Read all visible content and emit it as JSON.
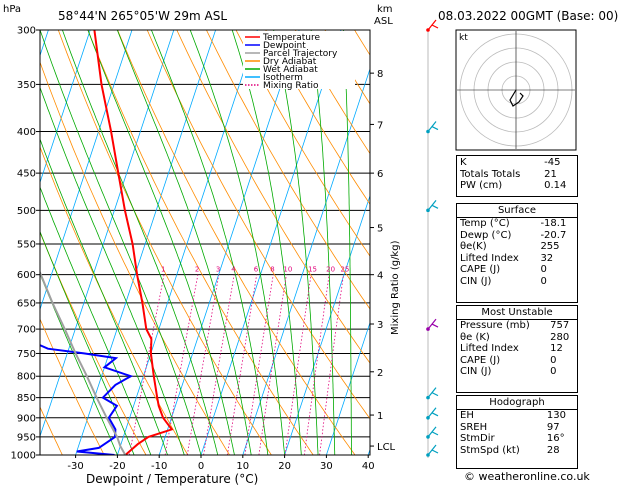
{
  "header": {
    "location": "58°44'N  265°05'W  29m  ASL",
    "datetime": "08.03.2022  00GMT  (Base: 00)",
    "hpa_unit": "hPa",
    "km_unit": "km",
    "asl_unit": "ASL"
  },
  "legend": [
    {
      "label": "Temperature",
      "color": "#ff0000"
    },
    {
      "label": "Dewpoint",
      "color": "#0000ff"
    },
    {
      "label": "Parcel Trajectory",
      "color": "#a0a0a0"
    },
    {
      "label": "Dry Adiabat",
      "color": "#ff8c00"
    },
    {
      "label": "Wet Adiabat",
      "color": "#00aa00"
    },
    {
      "label": "Isotherm",
      "color": "#00aaff"
    },
    {
      "label": "Mixing Ratio",
      "color": "#e0007a"
    }
  ],
  "colors": {
    "temperature": "#ff0000",
    "dewpoint": "#0000ff",
    "parcel": "#a0a0a0",
    "dry_adiabat": "#ff8c00",
    "wet_adiabat": "#00aa00",
    "isotherm": "#00aaff",
    "mixing_ratio": "#e0007a",
    "wind_barb": "#00a0c0"
  },
  "chart_data": {
    "type": "line",
    "title": "",
    "xlabel": "Dewpoint / Temperature (°C)",
    "ylabel": "",
    "secondary_ylabel": "Mixing Ratio (g/kg)",
    "x_ticks": [
      -30,
      -20,
      -10,
      0,
      10,
      20,
      30,
      40
    ],
    "xlim": [
      -40,
      40
    ],
    "y_log_scale": true,
    "pressure_levels": [
      300,
      350,
      400,
      450,
      500,
      550,
      600,
      650,
      700,
      750,
      800,
      850,
      900,
      950,
      1000
    ],
    "ylim": [
      1000,
      300
    ],
    "skew": true,
    "km_ticks": [
      {
        "p": 339,
        "label": "8"
      },
      {
        "p": 392,
        "label": "7"
      },
      {
        "p": 450,
        "label": "6"
      },
      {
        "p": 525,
        "label": "5"
      },
      {
        "p": 600,
        "label": "4"
      },
      {
        "p": 690,
        "label": "3"
      },
      {
        "p": 790,
        "label": "2"
      },
      {
        "p": 893,
        "label": "1"
      },
      {
        "p": 975,
        "label": "LCL"
      }
    ],
    "mixing_ratio_labels": [
      {
        "label": "1",
        "g": 1
      },
      {
        "label": "2",
        "g": 2
      },
      {
        "label": "3",
        "g": 3
      },
      {
        "label": "4",
        "g": 4
      },
      {
        "label": "6",
        "g": 6
      },
      {
        "label": "8",
        "g": 8
      },
      {
        "label": "10",
        "g": 10
      },
      {
        "label": "15",
        "g": 15
      },
      {
        "label": "20",
        "g": 20
      },
      {
        "label": "25",
        "g": 25
      }
    ],
    "series": [
      {
        "name": "Temperature",
        "points": [
          [
            1000,
            -18.1
          ],
          [
            970,
            -16
          ],
          [
            950,
            -14
          ],
          [
            930,
            -9
          ],
          [
            900,
            -12
          ],
          [
            870,
            -14
          ],
          [
            850,
            -15
          ],
          [
            800,
            -17.5
          ],
          [
            750,
            -20
          ],
          [
            720,
            -21
          ],
          [
            700,
            -23
          ],
          [
            650,
            -26
          ],
          [
            600,
            -29.5
          ],
          [
            550,
            -33
          ],
          [
            500,
            -37.5
          ],
          [
            450,
            -42
          ],
          [
            400,
            -47
          ],
          [
            350,
            -53
          ],
          [
            300,
            -59
          ]
        ]
      },
      {
        "name": "Dewpoint",
        "points": [
          [
            1000,
            -20.7
          ],
          [
            990,
            -30
          ],
          [
            980,
            -25
          ],
          [
            950,
            -22
          ],
          [
            930,
            -22.5
          ],
          [
            900,
            -25
          ],
          [
            870,
            -24
          ],
          [
            850,
            -28
          ],
          [
            820,
            -26
          ],
          [
            800,
            -23
          ],
          [
            780,
            -30
          ],
          [
            760,
            -28
          ],
          [
            750,
            -36
          ],
          [
            740,
            -45
          ],
          [
            720,
            -51
          ],
          [
            700,
            -54
          ],
          [
            650,
            -58
          ],
          [
            600,
            -60
          ],
          [
            550,
            -62
          ],
          [
            520,
            -65
          ],
          [
            500,
            -63
          ],
          [
            470,
            -67
          ],
          [
            450,
            -66
          ],
          [
            430,
            -68
          ],
          [
            400,
            -69
          ],
          [
            350,
            -71
          ],
          [
            300,
            -73
          ]
        ]
      },
      {
        "name": "Parcel Trajectory",
        "points": [
          [
            1000,
            -18.1
          ],
          [
            975,
            -20
          ],
          [
            950,
            -21.5
          ],
          [
            900,
            -25.5
          ],
          [
            850,
            -29.5
          ],
          [
            800,
            -33.5
          ],
          [
            750,
            -38
          ],
          [
            700,
            -42.5
          ],
          [
            650,
            -47.5
          ],
          [
            600,
            -52.5
          ],
          [
            550,
            -58
          ],
          [
            500,
            -64
          ],
          [
            450,
            -70
          ],
          [
            400,
            -77
          ]
        ]
      }
    ]
  },
  "hodograph": {
    "label": "kt"
  },
  "indices": [
    {
      "label": "K",
      "value": "-45"
    },
    {
      "label": "Totals Totals",
      "value": "21"
    },
    {
      "label": "PW (cm)",
      "value": "0.14"
    }
  ],
  "surface": {
    "title": "Surface",
    "rows": [
      {
        "label": "Temp (°C)",
        "value": "-18.1"
      },
      {
        "label": "Dewp (°C)",
        "value": "-20.7"
      },
      {
        "label": "θe(K)",
        "value": "255"
      },
      {
        "label": "Lifted Index",
        "value": "32"
      },
      {
        "label": "CAPE (J)",
        "value": "0"
      },
      {
        "label": "CIN (J)",
        "value": "0"
      }
    ]
  },
  "most_unstable": {
    "title": "Most Unstable",
    "rows": [
      {
        "label": "Pressure (mb)",
        "value": "757"
      },
      {
        "label": "θe (K)",
        "value": "280"
      },
      {
        "label": "Lifted Index",
        "value": "12"
      },
      {
        "label": "CAPE (J)",
        "value": "0"
      },
      {
        "label": "CIN (J)",
        "value": "0"
      }
    ]
  },
  "hodograph_table": {
    "title": "Hodograph",
    "rows": [
      {
        "label": "EH",
        "value": "130"
      },
      {
        "label": "SREH",
        "value": "97"
      },
      {
        "label": "StmDir",
        "value": "16°"
      },
      {
        "label": "StmSpd (kt)",
        "value": "28"
      }
    ]
  },
  "footer": "© weatheronline.co.uk"
}
